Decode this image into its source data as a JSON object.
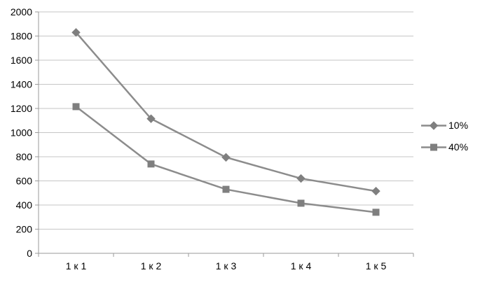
{
  "chart_data": {
    "type": "line",
    "title": "",
    "xlabel": "",
    "ylabel": "",
    "categories": [
      "1 к 1",
      "1 к 2",
      "1 к 3",
      "1 к 4",
      "1 к 5"
    ],
    "series": [
      {
        "name": "10%",
        "marker": "diamond",
        "values": [
          1830,
          1115,
          795,
          620,
          515
        ]
      },
      {
        "name": "40%",
        "marker": "square",
        "values": [
          1215,
          740,
          530,
          415,
          340
        ]
      }
    ],
    "ylim": [
      0,
      2000
    ],
    "ytick_step": 200,
    "grid": true,
    "legend_position": "right",
    "colors": {
      "line": "#8c8c8c",
      "marker": "#7f7f7f",
      "gridline": "#c6c6c6",
      "axis": "#9a9a9a",
      "text": "#000000"
    }
  }
}
